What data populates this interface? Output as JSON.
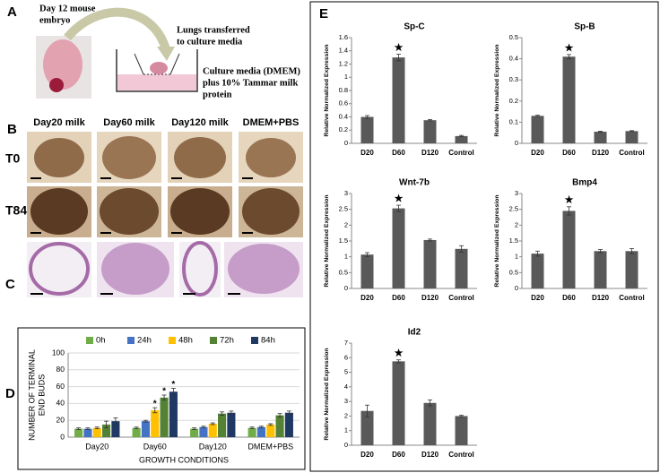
{
  "panels": {
    "a": "A",
    "b": "B",
    "c": "C",
    "d": "D",
    "e": "E"
  },
  "diagram": {
    "embryo": [
      "Day 12 mouse",
      "embryo"
    ],
    "transfer": [
      "Lungs transferred",
      "to culture media"
    ],
    "media": [
      "Culture media (DMEM)",
      "plus 10% Tammar milk",
      "protein"
    ]
  },
  "images": {
    "columns": [
      "Day20 milk",
      "Day60 milk",
      "Day120 milk",
      "DMEM+PBS"
    ],
    "rows": [
      "T0",
      "T84"
    ]
  },
  "chart_data": [
    {
      "type": "bar",
      "y_label": [
        "NUMBER OF TERMINAL",
        "END BUDS"
      ],
      "x_label": "GROWTH CONDITIONS",
      "categories": [
        "Day20",
        "Day60",
        "Day120",
        "DMEM+PBS"
      ],
      "series": [
        {
          "name": "0h",
          "color": "#70ad47",
          "values": [
            10,
            11,
            10,
            11
          ],
          "errors": [
            1,
            1,
            1,
            1
          ],
          "significance": [
            null,
            null,
            null,
            null
          ]
        },
        {
          "name": "24h",
          "color": "#4472c4",
          "values": [
            10,
            19,
            12,
            12
          ],
          "errors": [
            1,
            1,
            1,
            1
          ],
          "significance": [
            null,
            null,
            null,
            null
          ]
        },
        {
          "name": "48h",
          "color": "#ffc000",
          "values": [
            11,
            32,
            16,
            15
          ],
          "errors": [
            1,
            3,
            1,
            1
          ],
          "significance": [
            null,
            "*",
            null,
            null
          ]
        },
        {
          "name": "72h",
          "color": "#548235",
          "values": [
            15,
            47,
            28,
            26
          ],
          "errors": [
            4,
            3,
            2,
            2
          ],
          "significance": [
            null,
            "*",
            null,
            null
          ]
        },
        {
          "name": "84h",
          "color": "#1f3864",
          "values": [
            19,
            54,
            29,
            29
          ],
          "errors": [
            4,
            4,
            2,
            2
          ],
          "significance": [
            null,
            "*",
            null,
            null
          ]
        }
      ],
      "ylim": [
        0,
        100
      ],
      "yticks": [
        0,
        20,
        40,
        60,
        80,
        100
      ],
      "grid": true,
      "legend": "top"
    },
    {
      "type": "bar",
      "title": "Sp-C",
      "y_label": "Relative Normalized Expression",
      "color": "#595959",
      "categories": [
        "D20",
        "D60",
        "D120",
        "Control"
      ],
      "values": [
        0.4,
        1.3,
        0.35,
        0.11
      ],
      "errors": [
        0.02,
        0.05,
        0.01,
        0.01
      ],
      "significance": [
        null,
        "★",
        null,
        null
      ],
      "ylim": [
        0,
        1.6
      ],
      "yticks": [
        0,
        0.2,
        0.4,
        0.6,
        0.8,
        1,
        1.2,
        1.4,
        1.6
      ],
      "grid": false
    },
    {
      "type": "bar",
      "title": "Sp-B",
      "y_label": "Relative Normalized Expression",
      "color": "#595959",
      "categories": [
        "D20",
        "D60",
        "D120",
        "Control"
      ],
      "values": [
        0.13,
        0.41,
        0.055,
        0.058
      ],
      "errors": [
        0.003,
        0.01,
        0.002,
        0.002
      ],
      "significance": [
        null,
        "★",
        null,
        null
      ],
      "ylim": [
        0,
        0.5
      ],
      "yticks": [
        0,
        0.1,
        0.2,
        0.3,
        0.4,
        0.5
      ],
      "grid": false
    },
    {
      "type": "bar",
      "title": "Wnt-7b",
      "y_label": "Relative Normalized Expression",
      "color": "#595959",
      "categories": [
        "D20",
        "D60",
        "D120",
        "Control"
      ],
      "values": [
        1.07,
        2.53,
        1.53,
        1.25
      ],
      "errors": [
        0.06,
        0.1,
        0.03,
        0.1
      ],
      "significance": [
        null,
        "★",
        null,
        null
      ],
      "ylim": [
        0,
        3
      ],
      "yticks": [
        0,
        0.5,
        1,
        1.5,
        2,
        2.5,
        3
      ],
      "grid": false
    },
    {
      "type": "bar",
      "title": "Bmp4",
      "y_label": "Relative Normalized Expression",
      "color": "#595959",
      "categories": [
        "D20",
        "D60",
        "D120",
        "Control"
      ],
      "values": [
        1.1,
        2.45,
        1.18,
        1.18
      ],
      "errors": [
        0.08,
        0.13,
        0.05,
        0.08
      ],
      "significance": [
        null,
        "★",
        null,
        null
      ],
      "ylim": [
        0,
        3
      ],
      "yticks": [
        0,
        0.5,
        1,
        1.5,
        2,
        2.5,
        3
      ],
      "grid": false
    },
    {
      "type": "bar",
      "title": "Id2",
      "y_label": "Relative Normalized Expression",
      "color": "#595959",
      "categories": [
        "D20",
        "D60",
        "D120",
        "Control"
      ],
      "values": [
        2.35,
        5.75,
        2.9,
        2.0
      ],
      "errors": [
        0.4,
        0.1,
        0.2,
        0.05
      ],
      "significance": [
        null,
        "★",
        null,
        null
      ],
      "ylim": [
        0,
        7
      ],
      "yticks": [
        0,
        1,
        2,
        3,
        4,
        5,
        6,
        7
      ],
      "grid": false
    }
  ]
}
